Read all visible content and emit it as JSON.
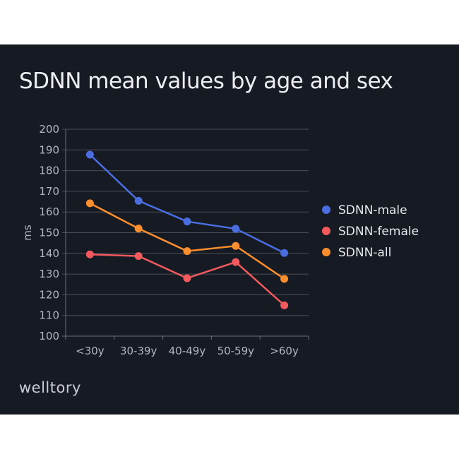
{
  "chart_data": {
    "type": "line",
    "title": "SDNN mean values by age and sex",
    "xlabel": "",
    "ylabel": "ms",
    "ylim": [
      100,
      200
    ],
    "yticks": [
      100,
      110,
      120,
      130,
      140,
      150,
      160,
      170,
      180,
      190,
      200
    ],
    "grid": true,
    "legend_position": "right",
    "categories": [
      "<30y",
      "30-39y",
      "40-49y",
      "50-59y",
      ">60y"
    ],
    "series": [
      {
        "name": "SDNN-male",
        "color": "#4a6ee0",
        "values": [
          187.7,
          165.4,
          155.4,
          151.9,
          140.2
        ]
      },
      {
        "name": "SDNN-female",
        "color": "#f25a5e",
        "values": [
          139.5,
          138.7,
          128.0,
          135.8,
          114.9
        ]
      },
      {
        "name": "SDNN-all",
        "color": "#fb8e2e",
        "values": [
          164.2,
          152.0,
          141.1,
          143.6,
          127.7
        ]
      }
    ]
  },
  "brand": {
    "logo": "welltory"
  }
}
